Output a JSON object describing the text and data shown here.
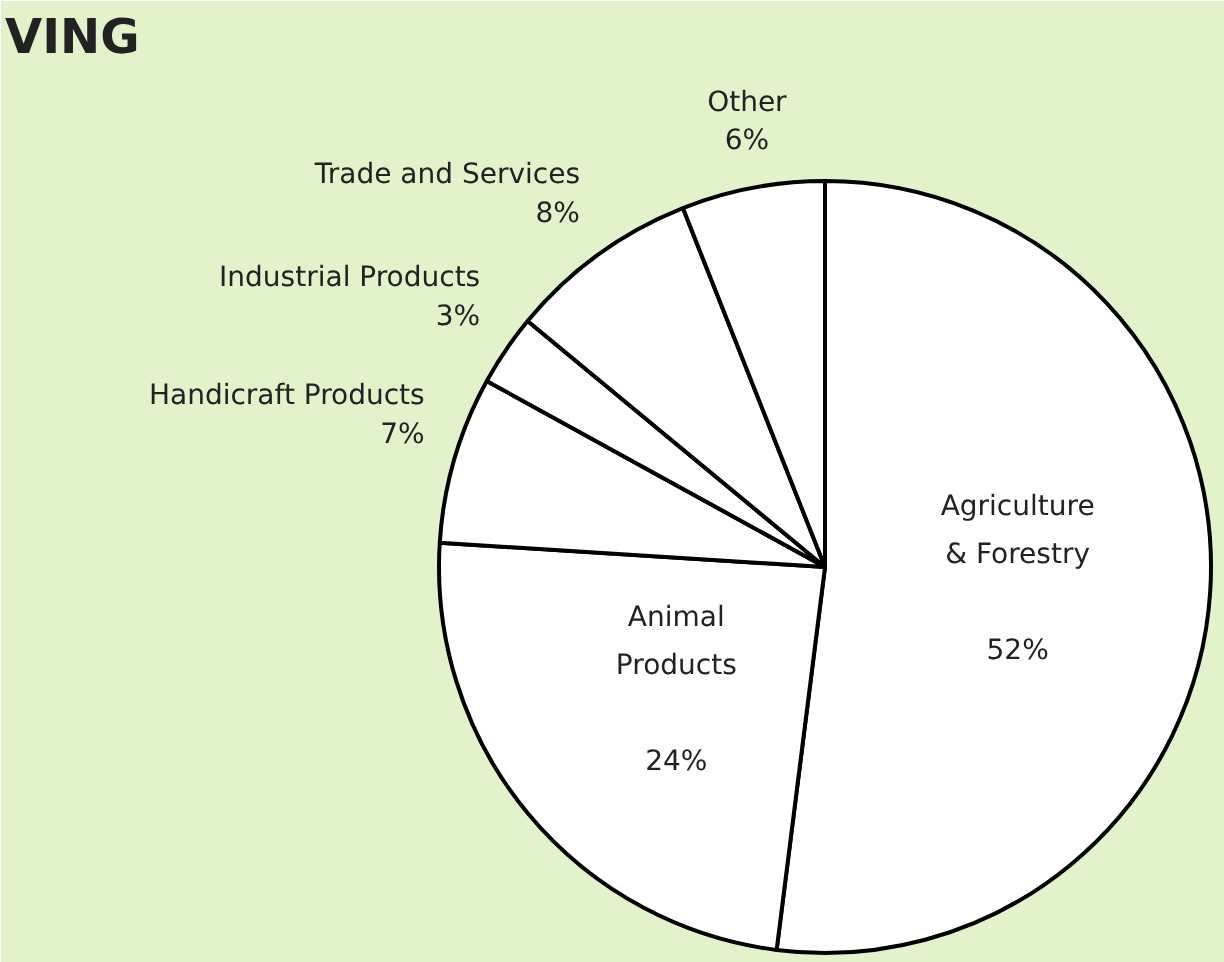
{
  "chart_data": {
    "type": "pie",
    "title": "VING",
    "categories": [
      "Agriculture & Forestry",
      "Animal Products",
      "Handicraft Products",
      "Industrial Products",
      "Trade and Services",
      "Other"
    ],
    "values": [
      52,
      24,
      7,
      3,
      8,
      6
    ],
    "colors": [
      "#ffffff",
      "#ffffff",
      "#ffffff",
      "#ffffff",
      "#ffffff",
      "#ffffff"
    ],
    "value_labels": [
      "52%",
      "24%",
      "7%",
      "3%",
      "8%",
      "6%"
    ]
  }
}
